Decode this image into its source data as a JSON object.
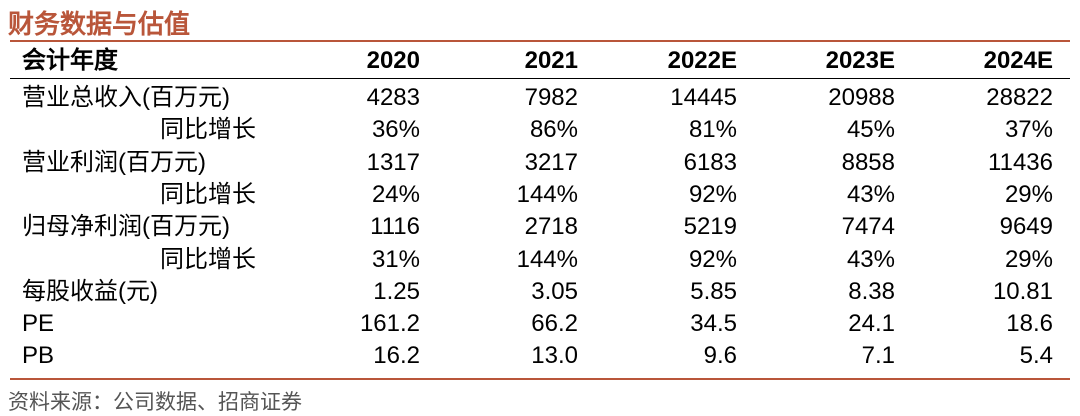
{
  "title": "财务数据与估值",
  "table": {
    "header": [
      "会计年度",
      "2020",
      "2021",
      "2022E",
      "2023E",
      "2024E"
    ],
    "rows": [
      [
        "营业总收入(百万元)",
        "4283",
        "7982",
        "14445",
        "20988",
        "28822"
      ],
      [
        "同比增长",
        "36%",
        "86%",
        "81%",
        "45%",
        "37%"
      ],
      [
        "营业利润(百万元)",
        "1317",
        "3217",
        "6183",
        "8858",
        "11436"
      ],
      [
        "同比增长",
        "24%",
        "144%",
        "92%",
        "43%",
        "29%"
      ],
      [
        "归母净利润(百万元)",
        "1116",
        "2718",
        "5219",
        "7474",
        "9649"
      ],
      [
        "同比增长",
        "31%",
        "144%",
        "92%",
        "43%",
        "29%"
      ],
      [
        "每股收益(元)",
        "1.25",
        "3.05",
        "5.85",
        "8.38",
        "10.81"
      ],
      [
        "PE",
        "161.2",
        "66.2",
        "34.5",
        "24.1",
        "18.6"
      ],
      [
        "PB",
        "16.2",
        "13.0",
        "9.6",
        "7.1",
        "5.4"
      ]
    ]
  },
  "source": "资料来源：公司数据、招商证券"
}
